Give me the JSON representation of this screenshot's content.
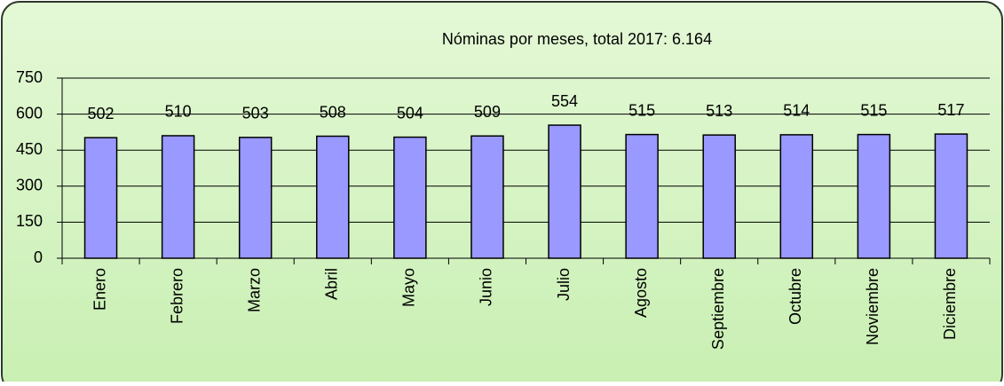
{
  "chart_data": {
    "type": "bar",
    "title": "Nóminas por meses, total 2017: 6.164",
    "categories": [
      "Enero",
      "Febrero",
      "Marzo",
      "Abril",
      "Mayo",
      "Junio",
      "Julio",
      "Agosto",
      "Septiembre",
      "Octubre",
      "Noviembre",
      "Diciembre"
    ],
    "values": [
      502,
      510,
      503,
      508,
      504,
      509,
      554,
      515,
      513,
      514,
      515,
      517
    ],
    "color": "#9999ff",
    "ylim": [
      0,
      750
    ],
    "yticks": [
      0,
      150,
      300,
      450,
      600,
      750
    ],
    "grid": true
  }
}
